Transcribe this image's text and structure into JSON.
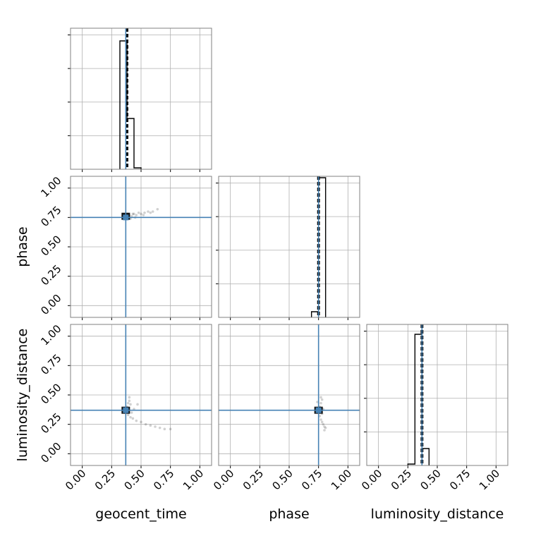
{
  "chart_data": {
    "type": "corner",
    "parameters": [
      "geocent_time",
      "phase",
      "luminosity_distance"
    ],
    "axis_labels": [
      "geocent_time",
      "phase",
      "luminosity_distance"
    ],
    "range": [
      -0.1,
      1.1
    ],
    "ticks": [
      0.0,
      0.25,
      0.5,
      0.75,
      1.0
    ],
    "tick_labels": [
      "0.00",
      "0.25",
      "0.50",
      "0.75",
      "1.00"
    ],
    "truths": [
      0.37,
      0.75,
      0.37
    ],
    "truth_color": "#4682b4",
    "quantile_color": "#000000",
    "grid": true,
    "histograms": [
      {
        "parameter": "geocent_time",
        "bin_edges": [
          0.32,
          0.38,
          0.44,
          0.5
        ],
        "heights": [
          0.91,
          0.36,
          0.01
        ],
        "quantile_lines": [
          0.375,
          0.38,
          0.385
        ]
      },
      {
        "parameter": "phase",
        "bin_edges": [
          0.69,
          0.75,
          0.81
        ],
        "heights": [
          0.04,
          0.99
        ],
        "quantile_lines": [
          0.745,
          0.75,
          0.755
        ]
      },
      {
        "parameter": "luminosity_distance",
        "bin_edges": [
          0.25,
          0.31,
          0.37,
          0.43
        ],
        "heights": [
          0.01,
          0.93,
          0.12
        ],
        "quantile_lines": [
          0.365,
          0.37,
          0.375
        ]
      }
    ],
    "scatter_panels": [
      {
        "x": "geocent_time",
        "y": "phase",
        "samples": [
          [
            0.37,
            0.75
          ],
          [
            0.38,
            0.76
          ],
          [
            0.36,
            0.77
          ],
          [
            0.39,
            0.74
          ],
          [
            0.4,
            0.77
          ],
          [
            0.42,
            0.76
          ],
          [
            0.44,
            0.78
          ],
          [
            0.46,
            0.77
          ],
          [
            0.48,
            0.79
          ],
          [
            0.5,
            0.78
          ],
          [
            0.53,
            0.79
          ],
          [
            0.56,
            0.8
          ],
          [
            0.6,
            0.8
          ],
          [
            0.64,
            0.82
          ],
          [
            0.45,
            0.75
          ],
          [
            0.41,
            0.74
          ],
          [
            0.52,
            0.77
          ],
          [
            0.58,
            0.79
          ],
          [
            0.43,
            0.78
          ],
          [
            0.38,
            0.78
          ]
        ]
      },
      {
        "x": "geocent_time",
        "y": "luminosity_distance",
        "samples": [
          [
            0.37,
            0.37
          ],
          [
            0.38,
            0.4
          ],
          [
            0.39,
            0.43
          ],
          [
            0.4,
            0.45
          ],
          [
            0.41,
            0.42
          ],
          [
            0.39,
            0.33
          ],
          [
            0.41,
            0.31
          ],
          [
            0.43,
            0.3
          ],
          [
            0.46,
            0.28
          ],
          [
            0.5,
            0.27
          ],
          [
            0.54,
            0.25
          ],
          [
            0.58,
            0.24
          ],
          [
            0.62,
            0.23
          ],
          [
            0.66,
            0.22
          ],
          [
            0.7,
            0.21
          ],
          [
            0.75,
            0.21
          ],
          [
            0.44,
            0.38
          ],
          [
            0.47,
            0.42
          ],
          [
            0.4,
            0.48
          ],
          [
            0.42,
            0.35
          ]
        ]
      },
      {
        "x": "phase",
        "y": "luminosity_distance",
        "samples": [
          [
            0.75,
            0.37
          ],
          [
            0.76,
            0.4
          ],
          [
            0.77,
            0.43
          ],
          [
            0.74,
            0.44
          ],
          [
            0.78,
            0.46
          ],
          [
            0.76,
            0.32
          ],
          [
            0.77,
            0.29
          ],
          [
            0.78,
            0.27
          ],
          [
            0.79,
            0.25
          ],
          [
            0.8,
            0.23
          ],
          [
            0.81,
            0.22
          ],
          [
            0.8,
            0.2
          ],
          [
            0.78,
            0.34
          ],
          [
            0.79,
            0.38
          ],
          [
            0.73,
            0.35
          ],
          [
            0.77,
            0.48
          ]
        ]
      }
    ],
    "peak_points": [
      {
        "x": "geocent_time",
        "y": "phase",
        "value": [
          0.37,
          0.76
        ]
      },
      {
        "x": "geocent_time",
        "y": "luminosity_distance",
        "value": [
          0.37,
          0.37
        ]
      },
      {
        "x": "phase",
        "y": "luminosity_distance",
        "value": [
          0.75,
          0.37
        ]
      }
    ]
  }
}
